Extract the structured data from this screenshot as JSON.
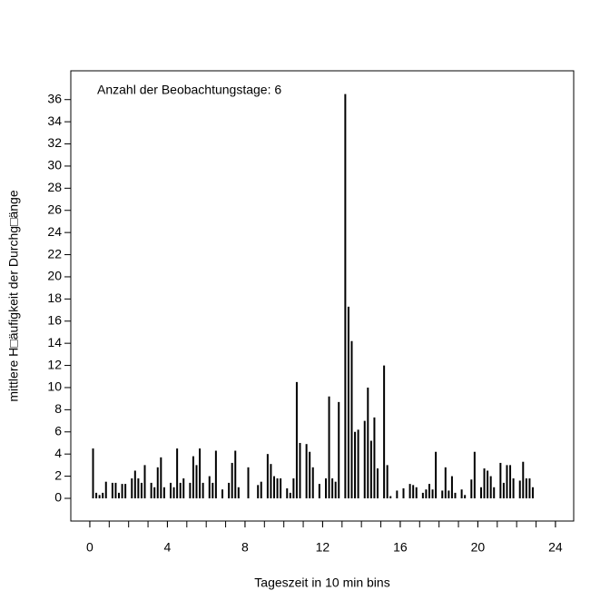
{
  "chart_data": {
    "type": "bar",
    "annotation": "Anzahl der Beobachtungstage: 6",
    "x_label": "Tageszeit in 10 min bins",
    "y_label": "mittlere H□äufigkeit der Durchg□änge",
    "color": "#000000",
    "x": [
      0.167,
      0.333,
      0.5,
      0.667,
      0.833,
      1.167,
      1.333,
      1.5,
      1.667,
      1.833,
      2.167,
      2.333,
      2.5,
      2.667,
      2.833,
      3.167,
      3.333,
      3.5,
      3.667,
      3.833,
      4.167,
      4.333,
      4.5,
      4.667,
      4.833,
      5.167,
      5.333,
      5.5,
      5.667,
      5.833,
      6.167,
      6.333,
      6.5,
      6.833,
      7.167,
      7.333,
      7.5,
      7.667,
      8.167,
      8.667,
      8.833,
      9.167,
      9.333,
      9.5,
      9.667,
      9.833,
      10.167,
      10.333,
      10.5,
      10.667,
      10.833,
      11.167,
      11.333,
      11.5,
      11.833,
      12.167,
      12.333,
      12.5,
      12.667,
      12.833,
      13.167,
      13.333,
      13.5,
      13.667,
      13.833,
      14.167,
      14.333,
      14.5,
      14.667,
      14.833,
      15.167,
      15.333,
      15.5,
      15.833,
      16.167,
      16.5,
      16.667,
      16.833,
      17.167,
      17.333,
      17.5,
      17.667,
      17.833,
      18.167,
      18.333,
      18.5,
      18.667,
      18.833,
      19.167,
      19.333,
      19.667,
      19.833,
      20.167,
      20.333,
      20.5,
      20.667,
      20.833,
      21.167,
      21.333,
      21.5,
      21.667,
      21.833,
      22.167,
      22.333,
      22.5,
      22.667,
      22.833
    ],
    "values": [
      4.5,
      0.5,
      0.3,
      0.5,
      1.5,
      1.4,
      1.4,
      0.5,
      1.3,
      1.3,
      1.8,
      2.5,
      1.8,
      1.4,
      3.0,
      1.4,
      1.0,
      2.8,
      3.7,
      1.0,
      1.4,
      1.0,
      4.5,
      1.4,
      1.8,
      1.4,
      3.8,
      3.0,
      4.5,
      1.4,
      2.0,
      1.4,
      4.3,
      0.8,
      1.4,
      3.2,
      4.3,
      1.0,
      2.8,
      1.2,
      1.5,
      4.0,
      3.1,
      2.0,
      1.8,
      1.8,
      0.9,
      0.5,
      1.8,
      10.5,
      5.0,
      4.9,
      4.2,
      2.8,
      1.3,
      1.8,
      9.2,
      1.8,
      1.5,
      8.7,
      36.5,
      17.3,
      14.2,
      6.0,
      6.2,
      7.0,
      10.0,
      5.2,
      7.3,
      2.7,
      12.0,
      3.0,
      0.2,
      0.7,
      0.9,
      1.3,
      1.2,
      1.0,
      0.5,
      0.8,
      1.3,
      0.8,
      4.2,
      0.7,
      2.8,
      0.7,
      2.0,
      0.5,
      0.8,
      0.3,
      1.7,
      4.2,
      1.0,
      2.7,
      2.5,
      2.0,
      1.0,
      3.2,
      1.4,
      3.0,
      3.0,
      1.8,
      1.6,
      3.3,
      1.8,
      1.8,
      1.0
    ],
    "xlim": [
      -0.98,
      24.94
    ],
    "ylim": [
      -2.05,
      38.6
    ],
    "xticks": [
      0,
      4,
      8,
      12,
      16,
      20,
      24
    ],
    "xminor_ticks": [
      0,
      1,
      2,
      3,
      4,
      5,
      6,
      7,
      8,
      9,
      10,
      11,
      12,
      13,
      14,
      15,
      16,
      17,
      18,
      19,
      20,
      21,
      22,
      23,
      24
    ],
    "yticks": [
      0,
      2,
      4,
      6,
      8,
      10,
      12,
      14,
      16,
      18,
      20,
      22,
      24,
      26,
      28,
      30,
      32,
      34,
      36
    ]
  }
}
